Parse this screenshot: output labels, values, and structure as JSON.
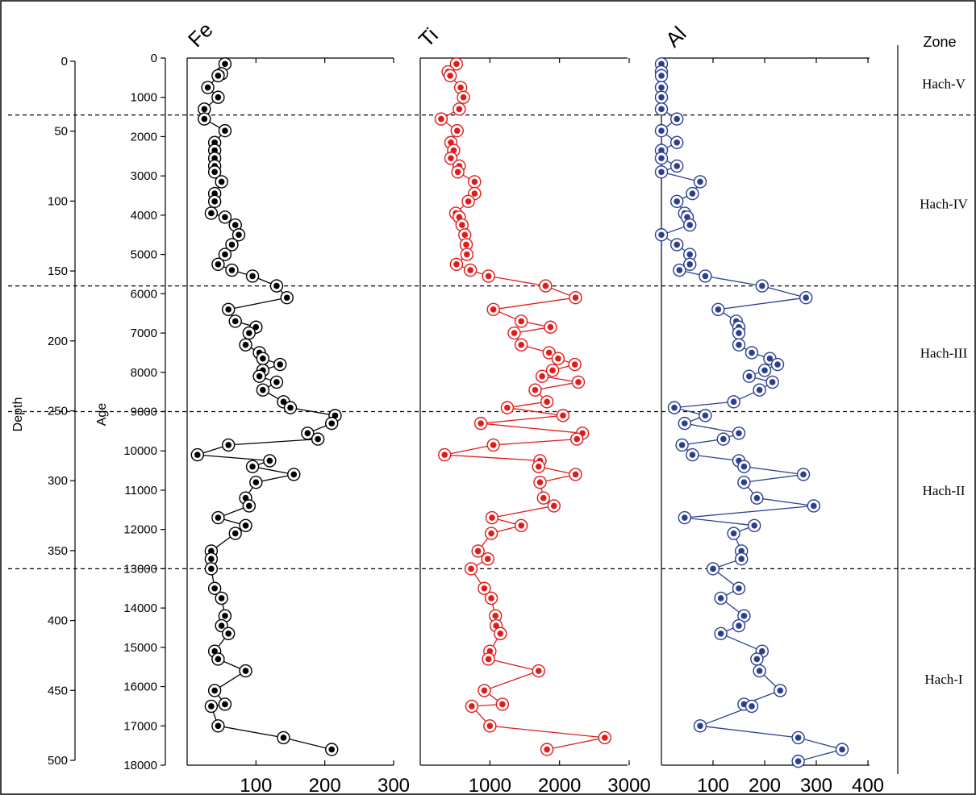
{
  "chart_data": {
    "type": "line",
    "depth_axis": {
      "label": "Depth",
      "ticks": [
        0,
        50,
        100,
        150,
        200,
        250,
        300,
        350,
        400,
        450,
        500
      ],
      "range": [
        0,
        500
      ]
    },
    "age_axis": {
      "label": "Age",
      "ticks": [
        0,
        1000,
        2000,
        3000,
        4000,
        5000,
        6000,
        7000,
        8000,
        9000,
        10000,
        11000,
        12000,
        13000,
        14000,
        15000,
        16000,
        17000,
        18000
      ],
      "range": [
        0,
        18000
      ]
    },
    "zone_header": "Zone",
    "zone_boundaries_age": [
      1450,
      5800,
      9000,
      13000
    ],
    "zones": [
      {
        "name": "Hach-V",
        "age_center": 650
      },
      {
        "name": "Hach-IV",
        "age_center": 3700
      },
      {
        "name": "Hach-III",
        "age_center": 7500
      },
      {
        "name": "Hach-II",
        "age_center": 11000
      },
      {
        "name": "Hach-I",
        "age_center": 15800
      }
    ],
    "panels": [
      {
        "name": "Fe",
        "color": "#000000",
        "range": [
          0,
          300
        ],
        "tick_labels": [
          "100",
          "200",
          "300"
        ],
        "tick_values": [
          100,
          200,
          300
        ],
        "points": [
          [
            55,
            150
          ],
          [
            50,
            400
          ],
          [
            45,
            450
          ],
          [
            30,
            750
          ],
          [
            45,
            1000
          ],
          [
            25,
            1300
          ],
          [
            25,
            1550
          ],
          [
            55,
            1850
          ],
          [
            40,
            2150
          ],
          [
            40,
            2350
          ],
          [
            40,
            2550
          ],
          [
            40,
            2750
          ],
          [
            40,
            2900
          ],
          [
            50,
            3150
          ],
          [
            40,
            3450
          ],
          [
            40,
            3650
          ],
          [
            35,
            3950
          ],
          [
            55,
            4050
          ],
          [
            70,
            4250
          ],
          [
            75,
            4500
          ],
          [
            65,
            4750
          ],
          [
            55,
            5000
          ],
          [
            45,
            5250
          ],
          [
            65,
            5400
          ],
          [
            95,
            5550
          ],
          [
            130,
            5800
          ],
          [
            145,
            6100
          ],
          [
            60,
            6400
          ],
          [
            70,
            6700
          ],
          [
            100,
            6850
          ],
          [
            90,
            7000
          ],
          [
            85,
            7300
          ],
          [
            105,
            7500
          ],
          [
            110,
            7650
          ],
          [
            135,
            7800
          ],
          [
            110,
            7950
          ],
          [
            105,
            8100
          ],
          [
            130,
            8250
          ],
          [
            110,
            8450
          ],
          [
            140,
            8750
          ],
          [
            150,
            8900
          ],
          [
            215,
            9100
          ],
          [
            210,
            9300
          ],
          [
            175,
            9550
          ],
          [
            190,
            9700
          ],
          [
            60,
            9850
          ],
          [
            15,
            10100
          ],
          [
            120,
            10250
          ],
          [
            95,
            10400
          ],
          [
            155,
            10600
          ],
          [
            100,
            10800
          ],
          [
            85,
            11200
          ],
          [
            90,
            11400
          ],
          [
            45,
            11700
          ],
          [
            85,
            11900
          ],
          [
            70,
            12100
          ],
          [
            35,
            12550
          ],
          [
            35,
            12750
          ],
          [
            35,
            13000
          ],
          [
            40,
            13500
          ],
          [
            50,
            13750
          ],
          [
            55,
            14200
          ],
          [
            50,
            14450
          ],
          [
            60,
            14650
          ],
          [
            40,
            15100
          ],
          [
            45,
            15300
          ],
          [
            85,
            15600
          ],
          [
            40,
            16100
          ],
          [
            55,
            16450
          ],
          [
            35,
            16500
          ],
          [
            45,
            17000
          ],
          [
            140,
            17300
          ],
          [
            210,
            17600
          ]
        ]
      },
      {
        "name": "Ti",
        "color": "#e01b1b",
        "range": [
          0,
          3000
        ],
        "tick_labels": [
          "1000",
          "2000",
          "3000"
        ],
        "tick_values": [
          1000,
          2000,
          3000
        ],
        "points": [
          [
            520,
            150
          ],
          [
            400,
            350
          ],
          [
            430,
            450
          ],
          [
            580,
            750
          ],
          [
            620,
            1000
          ],
          [
            560,
            1300
          ],
          [
            300,
            1550
          ],
          [
            530,
            1850
          ],
          [
            440,
            2150
          ],
          [
            480,
            2350
          ],
          [
            440,
            2550
          ],
          [
            560,
            2750
          ],
          [
            540,
            2900
          ],
          [
            780,
            3150
          ],
          [
            780,
            3450
          ],
          [
            690,
            3650
          ],
          [
            510,
            3950
          ],
          [
            560,
            4050
          ],
          [
            600,
            4250
          ],
          [
            640,
            4500
          ],
          [
            660,
            4750
          ],
          [
            670,
            5000
          ],
          [
            520,
            5250
          ],
          [
            720,
            5400
          ],
          [
            980,
            5550
          ],
          [
            1800,
            5800
          ],
          [
            2230,
            6100
          ],
          [
            1050,
            6400
          ],
          [
            1450,
            6700
          ],
          [
            1870,
            6850
          ],
          [
            1350,
            7000
          ],
          [
            1450,
            7300
          ],
          [
            1850,
            7500
          ],
          [
            1980,
            7650
          ],
          [
            2220,
            7800
          ],
          [
            1900,
            7950
          ],
          [
            1750,
            8100
          ],
          [
            2270,
            8250
          ],
          [
            1650,
            8450
          ],
          [
            1820,
            8750
          ],
          [
            1250,
            8900
          ],
          [
            2050,
            9100
          ],
          [
            870,
            9300
          ],
          [
            2330,
            9550
          ],
          [
            2250,
            9700
          ],
          [
            1050,
            9850
          ],
          [
            350,
            10100
          ],
          [
            1720,
            10250
          ],
          [
            1700,
            10400
          ],
          [
            2230,
            10600
          ],
          [
            1720,
            10800
          ],
          [
            1770,
            11200
          ],
          [
            1920,
            11400
          ],
          [
            1030,
            11700
          ],
          [
            1450,
            11900
          ],
          [
            1020,
            12100
          ],
          [
            830,
            12550
          ],
          [
            970,
            12750
          ],
          [
            730,
            13000
          ],
          [
            920,
            13500
          ],
          [
            1020,
            13750
          ],
          [
            1080,
            14200
          ],
          [
            1090,
            14450
          ],
          [
            1150,
            14650
          ],
          [
            1000,
            15100
          ],
          [
            980,
            15300
          ],
          [
            1700,
            15600
          ],
          [
            920,
            16100
          ],
          [
            1180,
            16450
          ],
          [
            740,
            16500
          ],
          [
            1000,
            17000
          ],
          [
            2650,
            17300
          ],
          [
            1820,
            17600
          ]
        ]
      },
      {
        "name": "Al",
        "color": "#2b3f8f",
        "range": [
          0,
          400
        ],
        "tick_labels": [
          "100",
          "200",
          "300",
          "400"
        ],
        "tick_values": [
          100,
          200,
          300,
          400
        ],
        "points": [
          [
            0,
            150
          ],
          [
            0,
            350
          ],
          [
            0,
            450
          ],
          [
            0,
            750
          ],
          [
            0,
            1000
          ],
          [
            0,
            1300
          ],
          [
            30,
            1550
          ],
          [
            0,
            1850
          ],
          [
            30,
            2150
          ],
          [
            0,
            2350
          ],
          [
            0,
            2550
          ],
          [
            30,
            2750
          ],
          [
            0,
            2900
          ],
          [
            75,
            3150
          ],
          [
            60,
            3450
          ],
          [
            30,
            3650
          ],
          [
            45,
            3950
          ],
          [
            50,
            4050
          ],
          [
            55,
            4250
          ],
          [
            0,
            4500
          ],
          [
            30,
            4750
          ],
          [
            55,
            5000
          ],
          [
            55,
            5250
          ],
          [
            35,
            5400
          ],
          [
            85,
            5550
          ],
          [
            195,
            5800
          ],
          [
            280,
            6100
          ],
          [
            110,
            6400
          ],
          [
            145,
            6700
          ],
          [
            150,
            6850
          ],
          [
            150,
            7000
          ],
          [
            150,
            7300
          ],
          [
            175,
            7500
          ],
          [
            210,
            7650
          ],
          [
            225,
            7800
          ],
          [
            200,
            7950
          ],
          [
            170,
            8100
          ],
          [
            215,
            8250
          ],
          [
            190,
            8450
          ],
          [
            140,
            8750
          ],
          [
            25,
            8900
          ],
          [
            85,
            9100
          ],
          [
            45,
            9300
          ],
          [
            150,
            9550
          ],
          [
            120,
            9700
          ],
          [
            40,
            9850
          ],
          [
            60,
            10100
          ],
          [
            150,
            10250
          ],
          [
            160,
            10400
          ],
          [
            275,
            10600
          ],
          [
            160,
            10800
          ],
          [
            185,
            11200
          ],
          [
            295,
            11400
          ],
          [
            45,
            11700
          ],
          [
            180,
            11900
          ],
          [
            140,
            12100
          ],
          [
            155,
            12550
          ],
          [
            155,
            12750
          ],
          [
            100,
            13000
          ],
          [
            150,
            13500
          ],
          [
            115,
            13750
          ],
          [
            160,
            14200
          ],
          [
            150,
            14450
          ],
          [
            115,
            14650
          ],
          [
            195,
            15100
          ],
          [
            185,
            15300
          ],
          [
            190,
            15600
          ],
          [
            230,
            16100
          ],
          [
            160,
            16450
          ],
          [
            175,
            16500
          ],
          [
            75,
            17000
          ],
          [
            265,
            17300
          ],
          [
            350,
            17600
          ],
          [
            265,
            17900
          ]
        ]
      }
    ]
  }
}
